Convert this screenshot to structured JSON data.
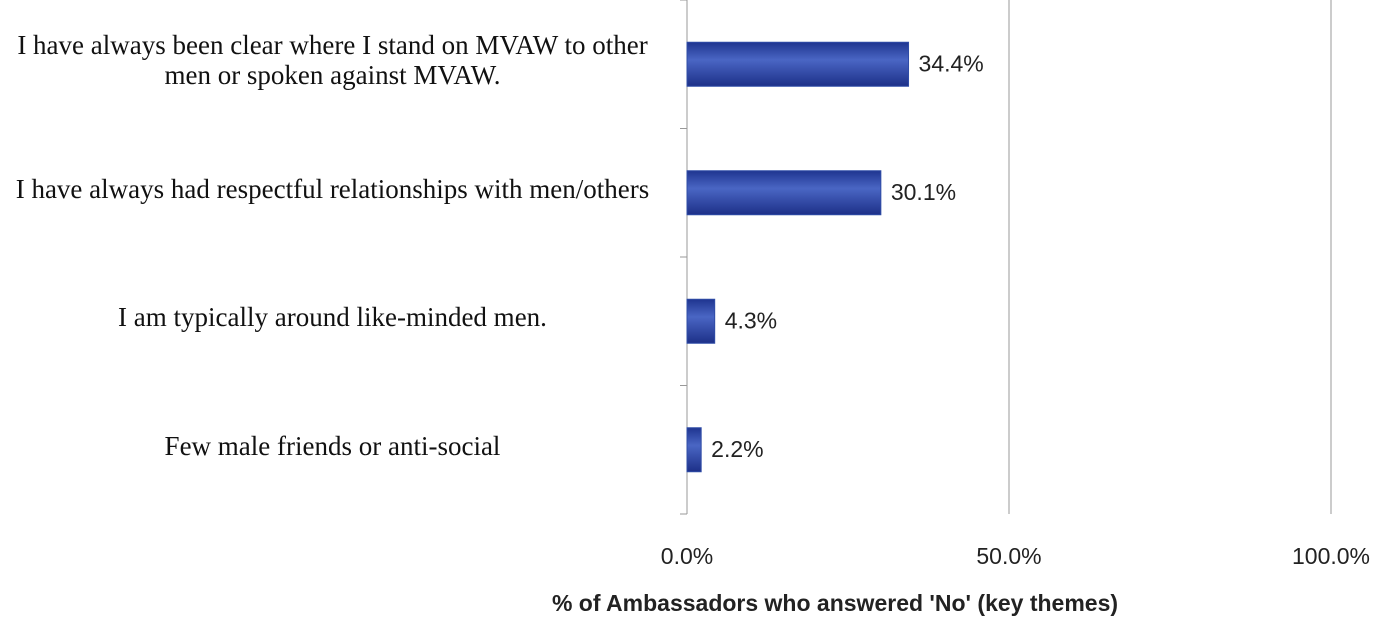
{
  "chart_data": {
    "type": "barh",
    "categories": [
      "I have always been clear where I stand on MVAW to other men or spoken against MVAW.",
      "I have always had respectful relationships with men/others",
      "I am typically around like-minded men.",
      "Few male friends or anti-social"
    ],
    "values": [
      34.4,
      30.1,
      4.3,
      2.2
    ],
    "value_labels": [
      "34.4%",
      "30.1%",
      "4.3%",
      "2.2%"
    ],
    "color": "#2f4ca6",
    "xlabel": "% of Ambassadors who answered 'No' (key themes)",
    "xlim": [
      0,
      100
    ],
    "xticks": [
      {
        "value": 0,
        "label": "0.0%"
      },
      {
        "value": 50,
        "label": "50.0%"
      },
      {
        "value": 100,
        "label": "100.0%"
      }
    ],
    "grid": true
  }
}
